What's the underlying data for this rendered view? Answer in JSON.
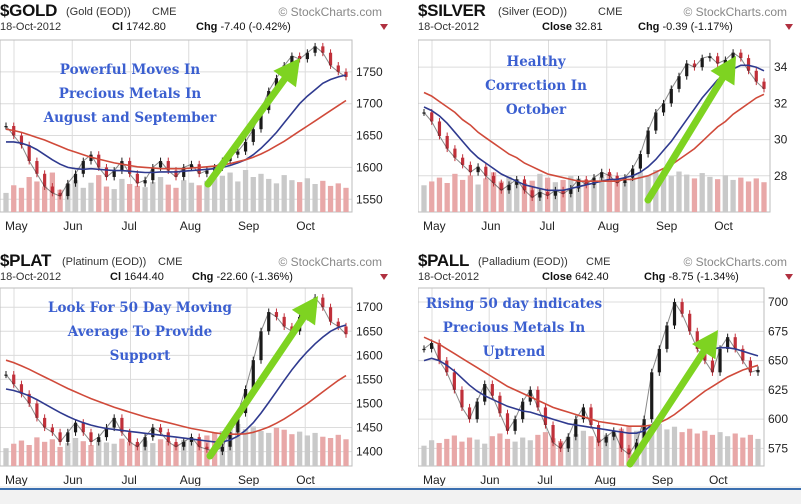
{
  "panels": [
    {
      "id": "gold",
      "header": {
        "symbol": "$GOLD",
        "name": "(Gold (EOD))",
        "exchange": "CME",
        "brand": "© StockCharts.com",
        "date": "18-Oct-2012",
        "price_label": "Cl",
        "price_value": "1742.80",
        "chg_label": "Chg",
        "chg_value": "-7.40 (-0.42%)"
      },
      "annotation": [
        "Powerful Moves In",
        "Precious Metals In",
        "August and September"
      ],
      "chart_data": {
        "type": "line",
        "title": "$GOLD (Gold (EOD)) CME",
        "x_labels": [
          "May",
          "Jun",
          "Jul",
          "Aug",
          "Sep",
          "Oct"
        ],
        "y_ticks": [
          1550,
          1600,
          1650,
          1700,
          1750
        ],
        "ylim": [
          1530,
          1800
        ],
        "series": [
          {
            "values": [
              1665,
              1650,
              1635,
              1610,
              1590,
              1570,
              1560,
              1555,
              1575,
              1590,
              1610,
              1620,
              1600,
              1585,
              1595,
              1610,
              1590,
              1575,
              1580,
              1600,
              1610,
              1595,
              1585,
              1600,
              1605,
              1590,
              1595,
              1600,
              1610,
              1620,
              1625,
              1640,
              1660,
              1690,
              1720,
              1740,
              1760,
              1775,
              1770,
              1780,
              1790,
              1780,
              1760,
              1750,
              1742
            ]
          },
          {
            "values": [
              1640,
              1640,
              1638,
              1634,
              1628,
              1620,
              1612,
              1605,
              1600,
              1598,
              1597,
              1598,
              1597,
              1596,
              1595,
              1595,
              1594,
              1593,
              1592,
              1592,
              1593,
              1593,
              1593,
              1594,
              1595,
              1596,
              1597,
              1598,
              1600,
              1603,
              1607,
              1612,
              1620,
              1630,
              1642,
              1655,
              1670,
              1685,
              1700,
              1712,
              1722,
              1732,
              1738,
              1742,
              1745
            ]
          },
          {
            "values": [
              1660,
              1658,
              1655,
              1651,
              1647,
              1643,
              1638,
              1633,
              1628,
              1624,
              1620,
              1616,
              1613,
              1610,
              1607,
              1605,
              1603,
              1601,
              1600,
              1599,
              1598,
              1598,
              1598,
              1598,
              1599,
              1600,
              1601,
              1602,
              1604,
              1606,
              1609,
              1612,
              1616,
              1621,
              1627,
              1634,
              1641,
              1649,
              1657,
              1665,
              1673,
              1681,
              1689,
              1697,
              1705
            ]
          }
        ],
        "volume": [
          30,
          42,
          38,
          55,
          48,
          40,
          62,
          35,
          44,
          50,
          38,
          46,
          58,
          40,
          36,
          52,
          44,
          41,
          39,
          47,
          55,
          43,
          38,
          50,
          46,
          42,
          49,
          53,
          57,
          62,
          48,
          66,
          55,
          60,
          52,
          45,
          58,
          50,
          47,
          53,
          44,
          49,
          41,
          45,
          38
        ]
      }
    },
    {
      "id": "silver",
      "header": {
        "symbol": "$SILVER",
        "name": "(Silver (EOD))",
        "exchange": "CME",
        "brand": "© StockCharts.com",
        "date": "18-Oct-2012",
        "price_label": "Close",
        "price_value": "32.81",
        "chg_label": "Chg",
        "chg_value": "-0.39 (-1.17%)"
      },
      "annotation": [
        "Healthy",
        "Correction In",
        "October"
      ],
      "chart_data": {
        "type": "line",
        "title": "$SILVER (Silver (EOD)) CME",
        "x_labels": [
          "May",
          "Jun",
          "Jul",
          "Aug",
          "Sep",
          "Oct"
        ],
        "y_ticks": [
          28,
          30,
          32,
          34
        ],
        "ylim": [
          26,
          35.5
        ],
        "series": [
          {
            "values": [
              31.5,
              31.0,
              30.2,
              29.5,
              29.0,
              28.6,
              28.2,
              28.5,
              28.0,
              27.6,
              27.2,
              27.5,
              27.8,
              27.2,
              26.8,
              27.1,
              26.9,
              27.2,
              27.0,
              27.3,
              27.8,
              27.5,
              27.9,
              28.2,
              28.0,
              27.6,
              27.9,
              28.4,
              29.2,
              30.5,
              31.5,
              32.0,
              32.8,
              33.5,
              34.2,
              34.0,
              34.5,
              34.6,
              34.2,
              34.4,
              34.8,
              34.5,
              33.8,
              33.2,
              32.8
            ]
          },
          {
            "values": [
              31.8,
              31.6,
              31.3,
              30.9,
              30.4,
              29.9,
              29.4,
              29.0,
              28.7,
              28.4,
              28.1,
              27.9,
              27.7,
              27.5,
              27.4,
              27.3,
              27.2,
              27.2,
              27.2,
              27.3,
              27.4,
              27.5,
              27.6,
              27.7,
              27.8,
              27.8,
              27.9,
              28.0,
              28.2,
              28.5,
              28.9,
              29.4,
              29.9,
              30.5,
              31.1,
              31.7,
              32.3,
              32.8,
              33.3,
              33.6,
              33.9,
              34.1,
              34.1,
              34.0,
              33.8
            ]
          },
          {
            "values": [
              32.6,
              32.4,
              32.1,
              31.8,
              31.5,
              31.1,
              30.8,
              30.4,
              30.1,
              29.8,
              29.5,
              29.2,
              29.0,
              28.7,
              28.5,
              28.3,
              28.1,
              28.0,
              27.9,
              27.8,
              27.7,
              27.7,
              27.7,
              27.7,
              27.7,
              27.7,
              27.8,
              27.8,
              27.9,
              28.0,
              28.2,
              28.4,
              28.6,
              28.9,
              29.2,
              29.5,
              29.9,
              30.3,
              30.7,
              31.0,
              31.4,
              31.7,
              32.0,
              32.3,
              32.5
            ]
          }
        ],
        "volume": [
          35,
          40,
          45,
          38,
          50,
          42,
          48,
          36,
          44,
          52,
          40,
          46,
          43,
          38,
          41,
          50,
          45,
          39,
          42,
          47,
          44,
          41,
          38,
          46,
          50,
          43,
          40,
          45,
          52,
          48,
          55,
          50,
          47,
          53,
          49,
          44,
          51,
          46,
          43,
          48,
          42,
          45,
          40,
          44,
          39
        ]
      }
    },
    {
      "id": "plat",
      "header": {
        "symbol": "$PLAT",
        "name": "(Platinum (EOD))",
        "exchange": "CME",
        "brand": "© StockCharts.com",
        "date": "18-Oct-2012",
        "price_label": "Cl",
        "price_value": "1644.40",
        "chg_label": "Chg",
        "chg_value": "-22.60 (-1.36%)"
      },
      "annotation": [
        "Look For 50 Day Moving",
        "Average To Provide",
        "Support"
      ],
      "chart_data": {
        "type": "line",
        "title": "$PLAT (Platinum (EOD)) CME",
        "x_labels": [
          "May",
          "Jun",
          "Jul",
          "Aug",
          "Sep",
          "Oct"
        ],
        "y_ticks": [
          1400,
          1450,
          1500,
          1550,
          1600,
          1650,
          1700
        ],
        "ylim": [
          1370,
          1740
        ],
        "series": [
          {
            "values": [
              1560,
              1540,
              1520,
              1500,
              1470,
              1450,
              1440,
              1420,
              1440,
              1460,
              1440,
              1420,
              1430,
              1450,
              1470,
              1440,
              1420,
              1410,
              1430,
              1450,
              1440,
              1420,
              1410,
              1420,
              1430,
              1410,
              1405,
              1400,
              1410,
              1440,
              1480,
              1530,
              1590,
              1650,
              1690,
              1680,
              1660,
              1650,
              1680,
              1700,
              1720,
              1700,
              1670,
              1660,
              1644
            ]
          },
          {
            "values": [
              1530,
              1527,
              1522,
              1516,
              1508,
              1499,
              1490,
              1481,
              1473,
              1466,
              1460,
              1455,
              1451,
              1448,
              1446,
              1444,
              1442,
              1440,
              1438,
              1436,
              1434,
              1432,
              1430,
              1428,
              1426,
              1424,
              1422,
              1420,
              1420,
              1424,
              1432,
              1444,
              1460,
              1480,
              1502,
              1525,
              1548,
              1570,
              1590,
              1608,
              1624,
              1638,
              1650,
              1658,
              1663
            ]
          },
          {
            "values": [
              1590,
              1585,
              1578,
              1571,
              1563,
              1555,
              1547,
              1539,
              1531,
              1524,
              1517,
              1510,
              1504,
              1498,
              1492,
              1487,
              1482,
              1477,
              1472,
              1468,
              1464,
              1460,
              1456,
              1452,
              1448,
              1445,
              1442,
              1439,
              1437,
              1436,
              1436,
              1437,
              1440,
              1445,
              1451,
              1459,
              1468,
              1478,
              1489,
              1500,
              1512,
              1524,
              1536,
              1548,
              1558
            ]
          }
        ],
        "volume": [
          28,
          35,
          40,
          33,
          45,
          38,
          42,
          30,
          36,
          44,
          39,
          33,
          41,
          37,
          35,
          43,
          38,
          34,
          40,
          36,
          42,
          39,
          35,
          41,
          45,
          40,
          48,
          52,
          55,
          60,
          66,
          58,
          62,
          55,
          52,
          60,
          57,
          50,
          54,
          48,
          52,
          46,
          44,
          49,
          42
        ]
      }
    },
    {
      "id": "pall",
      "header": {
        "symbol": "$PALL",
        "name": "(Palladium (EOD))",
        "exchange": "CME",
        "brand": "© StockCharts.com",
        "date": "18-Oct-2012",
        "price_label": "Close",
        "price_value": "642.40",
        "chg_label": "Chg",
        "chg_value": "-8.75 (-1.34%)"
      },
      "annotation": [
        "Rising 50 day indicates",
        "Precious Metals In",
        "Uptrend"
      ],
      "chart_data": {
        "type": "line",
        "title": "$PALL (Palladium (EOD)) CME",
        "x_labels": [
          "May",
          "Jun",
          "Jul",
          "Aug",
          "Sep",
          "Oct"
        ],
        "y_ticks": [
          575,
          600,
          625,
          650,
          675,
          700
        ],
        "ylim": [
          560,
          712
        ],
        "series": [
          {
            "values": [
              660,
              665,
              650,
              640,
              625,
              610,
              600,
              615,
              630,
              620,
              605,
              590,
              600,
              615,
              625,
              610,
              595,
              580,
              575,
              585,
              600,
              610,
              595,
              580,
              585,
              590,
              575,
              570,
              580,
              600,
              640,
              660,
              680,
              700,
              690,
              675,
              660,
              650,
              640,
              660,
              670,
              660,
              650,
              640,
              642
            ]
          },
          {
            "values": [
              650,
              652,
              650,
              646,
              641,
              635,
              629,
              624,
              620,
              617,
              614,
              611,
              609,
              607,
              606,
              604,
              602,
              600,
              598,
              596,
              595,
              594,
              593,
              592,
              591,
              590,
              589,
              588,
              588,
              590,
              595,
              602,
              611,
              622,
              633,
              643,
              651,
              657,
              660,
              661,
              661,
              660,
              658,
              656,
              654
            ]
          },
          {
            "values": [
              670,
              667,
              664,
              660,
              656,
              652,
              648,
              644,
              640,
              636,
              632,
              628,
              625,
              622,
              619,
              616,
              613,
              610,
              608,
              606,
              604,
              602,
              600,
              598,
              597,
              596,
              595,
              594,
              594,
              594,
              595,
              597,
              600,
              604,
              609,
              614,
              619,
              624,
              628,
              632,
              636,
              639,
              642,
              644,
              646
            ]
          }
        ],
        "volume": [
          30,
          38,
          34,
          40,
          45,
          36,
          42,
          39,
          33,
          44,
          48,
          40,
          36,
          42,
          38,
          46,
          50,
          41,
          37,
          43,
          47,
          52,
          44,
          40,
          46,
          49,
          55,
          58,
          52,
          60,
          56,
          62,
          54,
          58,
          50,
          55,
          48,
          52,
          46,
          50,
          44,
          48,
          42,
          46,
          40
        ]
      }
    }
  ],
  "colors": {
    "price_line": "#2a2a2a",
    "candle_up": "#1a1a1a",
    "candle_down": "#c0303a",
    "ma_short": "#2f3a8f",
    "ma_long": "#d04a3a",
    "volume_up": "#c9c9c9",
    "volume_down": "#e8a8a8",
    "grid": "#dcdcdc",
    "arrow": "#7ed321",
    "annotation": "#3b5fd0"
  }
}
